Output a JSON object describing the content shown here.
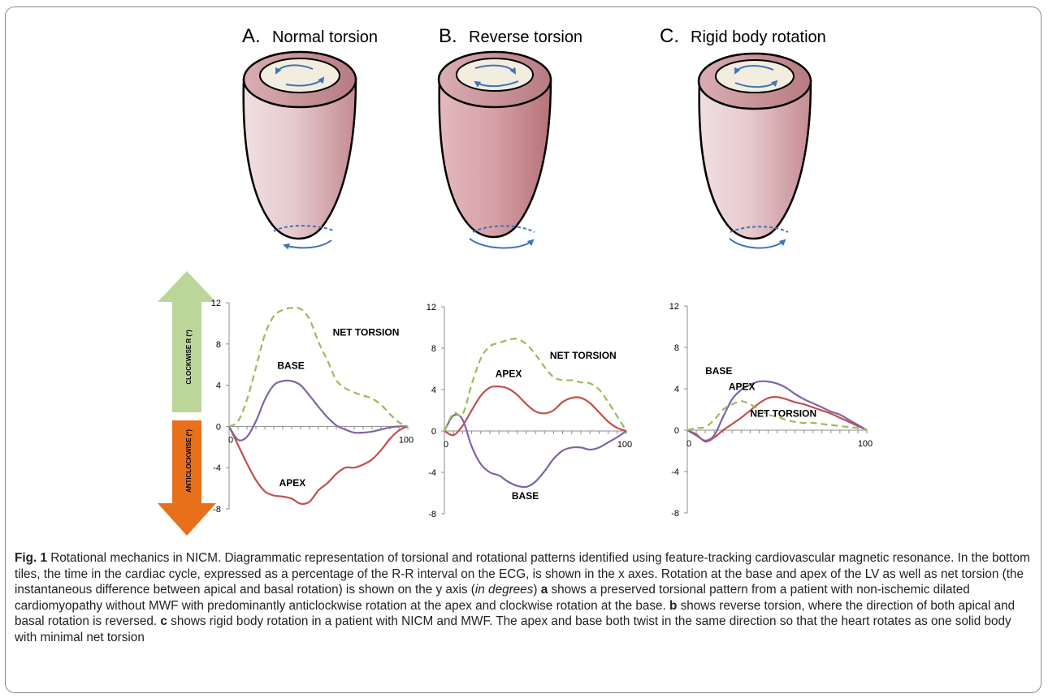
{
  "panels": [
    {
      "letter": "A.",
      "title": "Normal torsion"
    },
    {
      "letter": "B.",
      "title": "Reverse torsion"
    },
    {
      "letter": "C.",
      "title": "Rigid body rotation"
    }
  ],
  "arrows": {
    "up_label": "CLOCKWISE R (º)",
    "down_label": "ANTICLOCKWISE (º)",
    "up_color": "#bcd69a",
    "down_color": "#e8701a"
  },
  "colors": {
    "apex": "#c0504d",
    "base": "#8064a2",
    "net": "#9bbb59"
  },
  "chart_data": [
    {
      "type": "line",
      "ylim": [
        -8,
        12
      ],
      "yticks": [
        "12",
        "8",
        "4",
        "0",
        "-4",
        "-8"
      ],
      "xtick_labels": [
        "0",
        "100"
      ],
      "series": [
        {
          "name": "APEX",
          "x": [
            0,
            5,
            10,
            15,
            20,
            25,
            30,
            35,
            40,
            45,
            50,
            55,
            60,
            65,
            70,
            75,
            80,
            85,
            90,
            95,
            100
          ],
          "values": [
            0,
            -1.8,
            -3.6,
            -5.2,
            -6.3,
            -6.7,
            -6.8,
            -7.0,
            -7.5,
            -7.3,
            -6.2,
            -5.5,
            -4.6,
            -4.0,
            -4.0,
            -3.7,
            -3.2,
            -2.3,
            -1.2,
            -0.4,
            0
          ]
        },
        {
          "name": "BASE",
          "x": [
            0,
            5,
            10,
            15,
            20,
            25,
            30,
            35,
            40,
            45,
            50,
            55,
            60,
            65,
            70,
            75,
            80,
            85,
            90,
            95,
            100
          ],
          "values": [
            0,
            -1.3,
            -1.0,
            0.5,
            2.6,
            4.0,
            4.4,
            4.4,
            4.0,
            3.0,
            1.9,
            0.9,
            0.1,
            -0.3,
            -0.6,
            -0.6,
            -0.5,
            -0.3,
            -0.1,
            0,
            0
          ]
        },
        {
          "name": "NET TORSION",
          "x": [
            0,
            5,
            10,
            15,
            20,
            25,
            30,
            35,
            40,
            45,
            50,
            55,
            60,
            65,
            70,
            75,
            80,
            85,
            90,
            95,
            100
          ],
          "values": [
            0,
            0.5,
            2.6,
            5.7,
            8.9,
            10.7,
            11.3,
            11.5,
            11.4,
            10.4,
            8.2,
            6.4,
            4.5,
            3.7,
            3.3,
            3.0,
            2.7,
            2.1,
            1.2,
            0.4,
            0
          ]
        }
      ],
      "labels": [
        {
          "text": "NET TORSION",
          "x": 58,
          "y": 8.8
        },
        {
          "text": "BASE",
          "x": 27,
          "y": 5.6
        },
        {
          "text": "APEX",
          "x": 28,
          "y": -5.8
        }
      ]
    },
    {
      "type": "line",
      "ylim": [
        -8,
        12
      ],
      "yticks": [
        "12",
        "8",
        "4",
        "0",
        "-4",
        "-8"
      ],
      "xtick_labels": [
        "0",
        "100"
      ],
      "series": [
        {
          "name": "APEX",
          "x": [
            0,
            5,
            10,
            15,
            20,
            25,
            30,
            35,
            40,
            45,
            50,
            55,
            60,
            65,
            70,
            75,
            80,
            85,
            90,
            95,
            100
          ],
          "values": [
            0,
            -0.4,
            0.5,
            2.0,
            3.4,
            4.2,
            4.3,
            4.1,
            3.5,
            2.6,
            1.9,
            1.7,
            2.0,
            2.8,
            3.2,
            3.2,
            2.7,
            1.8,
            0.9,
            0.3,
            0
          ]
        },
        {
          "name": "BASE",
          "x": [
            0,
            5,
            10,
            15,
            20,
            25,
            30,
            35,
            40,
            45,
            50,
            55,
            60,
            65,
            70,
            75,
            80,
            85,
            90,
            95,
            100
          ],
          "values": [
            0,
            1.5,
            1.1,
            -1.5,
            -3.2,
            -4.0,
            -4.3,
            -4.9,
            -5.3,
            -5.4,
            -4.9,
            -3.9,
            -2.7,
            -1.9,
            -1.6,
            -1.6,
            -1.8,
            -1.6,
            -1.1,
            -0.6,
            0
          ]
        },
        {
          "name": "NET TORSION",
          "x": [
            0,
            5,
            10,
            15,
            20,
            25,
            30,
            35,
            40,
            45,
            50,
            55,
            60,
            65,
            70,
            75,
            80,
            85,
            90,
            95,
            100
          ],
          "values": [
            0,
            1.7,
            1.6,
            4.5,
            7.0,
            8.2,
            8.5,
            8.8,
            8.9,
            8.4,
            7.4,
            6.2,
            5.2,
            4.9,
            4.9,
            4.7,
            4.6,
            4.0,
            2.8,
            1.4,
            0
          ]
        }
      ],
      "labels": [
        {
          "text": "NET TORSION",
          "x": 58,
          "y": 7.0
        },
        {
          "text": "APEX",
          "x": 28,
          "y": 5.2
        },
        {
          "text": "BASE",
          "x": 37,
          "y": -6.6
        }
      ]
    },
    {
      "type": "line",
      "ylim": [
        -8,
        12
      ],
      "yticks": [
        "12",
        "8",
        "4",
        "0",
        "-4",
        "-8"
      ],
      "xtick_labels": [
        "0",
        "100"
      ],
      "series": [
        {
          "name": "APEX",
          "x": [
            0,
            5,
            10,
            15,
            20,
            25,
            30,
            35,
            40,
            45,
            50,
            55,
            60,
            65,
            70,
            75,
            80,
            85,
            90,
            95,
            100
          ],
          "values": [
            0,
            -0.4,
            -1.1,
            -0.7,
            0.0,
            0.6,
            1.2,
            1.9,
            2.6,
            3.1,
            3.2,
            3.0,
            2.7,
            2.5,
            2.2,
            1.9,
            1.6,
            1.2,
            0.8,
            0.4,
            0
          ]
        },
        {
          "name": "BASE",
          "x": [
            0,
            5,
            10,
            15,
            20,
            25,
            30,
            35,
            40,
            45,
            50,
            55,
            60,
            65,
            70,
            75,
            80,
            85,
            90,
            95,
            100
          ],
          "values": [
            0,
            -0.5,
            -1.0,
            -0.5,
            1.3,
            3.0,
            3.9,
            4.4,
            4.7,
            4.7,
            4.5,
            4.1,
            3.5,
            3.0,
            2.6,
            2.2,
            1.8,
            1.5,
            1.0,
            0.5,
            0
          ]
        },
        {
          "name": "NET TORSION",
          "x": [
            0,
            5,
            10,
            15,
            20,
            25,
            30,
            35,
            40,
            45,
            50,
            55,
            60,
            65,
            70,
            75,
            80,
            85,
            90,
            95,
            100
          ],
          "values": [
            0,
            0.2,
            0.3,
            1.0,
            2.0,
            2.5,
            2.8,
            2.5,
            2.0,
            1.5,
            1.3,
            1.0,
            0.8,
            0.7,
            0.7,
            0.6,
            0.5,
            0.4,
            0.3,
            0.2,
            0
          ]
        }
      ],
      "labels": [
        {
          "text": "BASE",
          "x": 10,
          "y": 5.4
        },
        {
          "text": "APEX",
          "x": 23,
          "y": 3.9
        },
        {
          "text": "NET TORSION",
          "x": 35,
          "y": 1.3
        }
      ]
    }
  ],
  "caption": {
    "fig_label": "Fig. 1",
    "line1": " Rotational mechanics in NICM. Diagrammatic representation of torsional and rotational patterns identified using feature-tracking cardiovascular magnetic resonance. In the bottom tiles, the time in the cardiac cycle, expressed as a percentage of the R-R interval on the ECG, is shown in the x axes. Rotation at the base and apex of the LV as well as net torsion (the instantaneous difference between apical and basal rotation) is shown on the y axis (",
    "italic": "in degrees",
    "line2": ") ",
    "a": "a",
    "text_a": " shows a preserved torsional pattern from a patient with non-ischemic dilated cardiomyopathy without MWF with predominantly anticlockwise rotation at the apex and clockwise rotation at the base. ",
    "b": "b",
    "text_b": " shows reverse torsion, where the direction of both apical and basal rotation is reversed. ",
    "c": "c",
    "text_c": " shows rigid body rotation in a patient with NICM and MWF. The apex and base both twist in the same direction so that the heart rotates as one solid body with minimal net torsion"
  }
}
